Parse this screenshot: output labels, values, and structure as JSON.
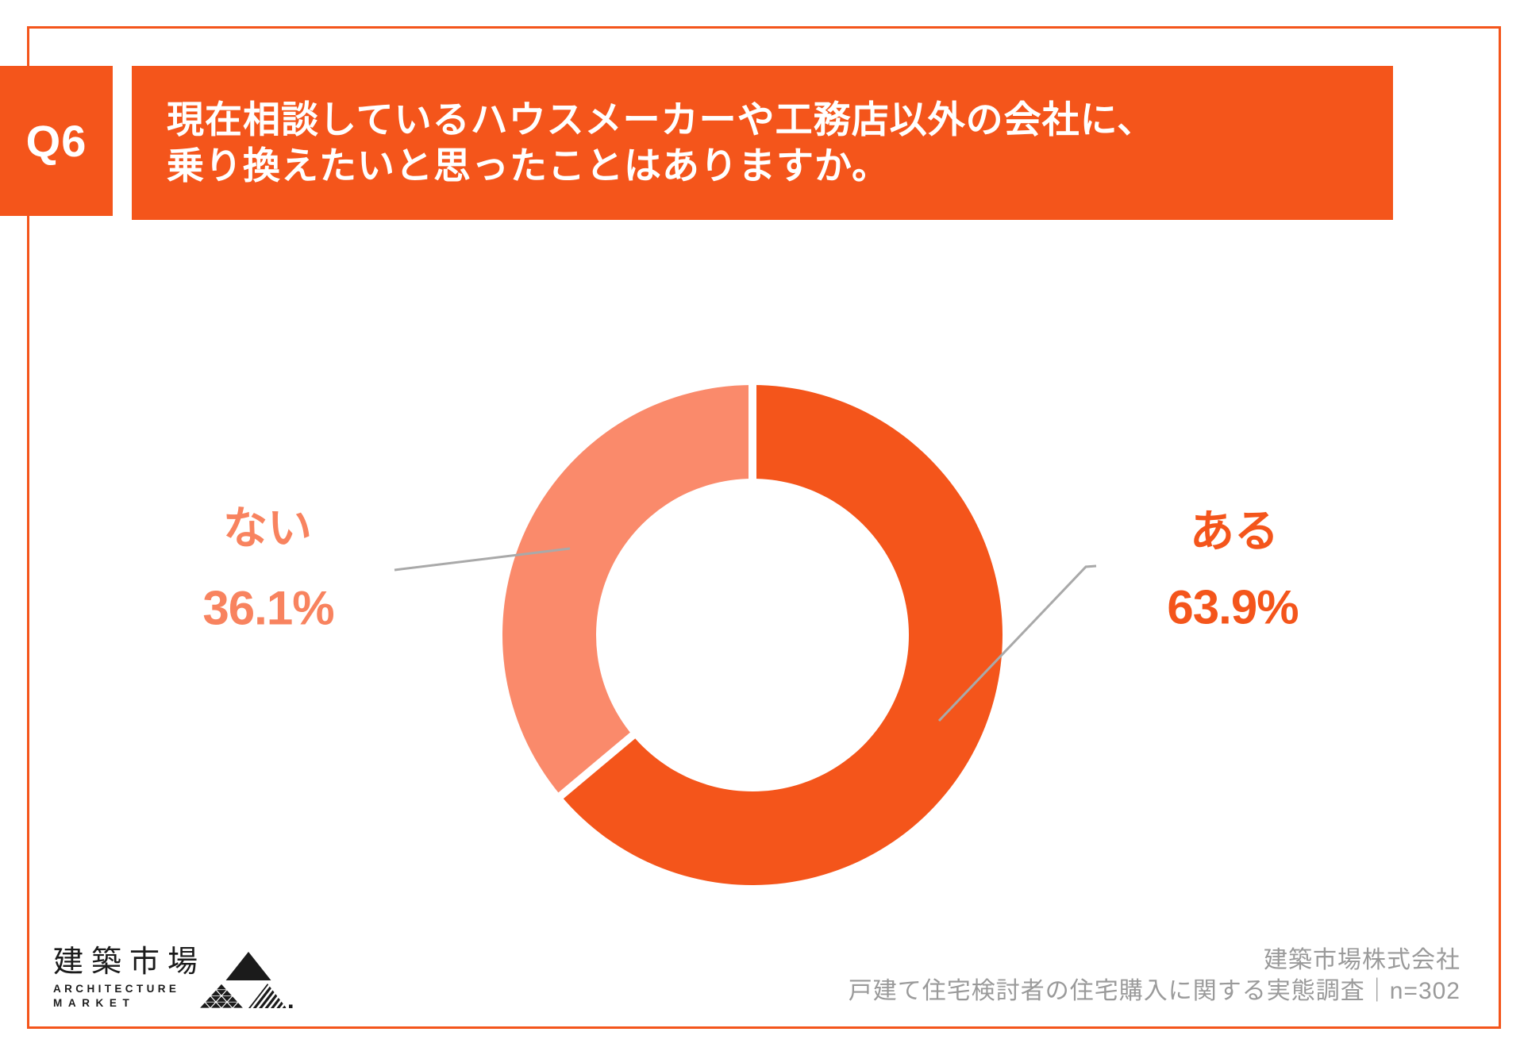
{
  "question": {
    "number": "Q6",
    "title_line1": "現在相談しているハウスメーカーや工務店以外の会社に、",
    "title_line2": "乗り換えたいと思ったことはありますか。"
  },
  "chart_data": {
    "type": "pie",
    "subtype": "donut",
    "title": "",
    "categories": [
      "ある",
      "ない"
    ],
    "values": [
      63.9,
      36.1
    ],
    "unit": "%",
    "colors": [
      "#F4551B",
      "#FA8A6B"
    ],
    "start_angle_deg": 0,
    "direction": "clockwise",
    "inner_radius_ratio": 0.625,
    "legend": "none",
    "labels": [
      {
        "category": "ある",
        "value_label": "63.9%",
        "side": "right"
      },
      {
        "category": "ない",
        "value_label": "36.1%",
        "side": "left"
      }
    ]
  },
  "callouts": {
    "left": {
      "name": "ない",
      "value": "36.1%"
    },
    "right": {
      "name": "ある",
      "value": "63.9%"
    }
  },
  "footer": {
    "logo_jp": "建築市場",
    "logo_en_line1": "ARCHITECTURE",
    "logo_en_line2": "MARKET",
    "credit_line1": "建築市場株式会社",
    "credit_line2": "戸建て住宅検討者の住宅購入に関する実態調査｜n=302"
  },
  "colors": {
    "accent_orange": "#F4551B",
    "accent_salmon": "#FA8A6B",
    "label_salmon": "#F8835F",
    "footer_gray": "#9A9A9A",
    "leader_gray": "#A9A9A9",
    "logo_black": "#1B1B1B",
    "background": "#FFFFFF"
  }
}
